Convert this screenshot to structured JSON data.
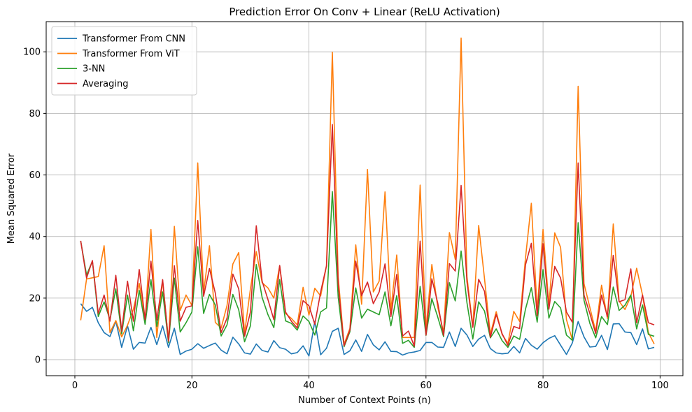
{
  "chart_data": {
    "type": "line",
    "title": "Prediction Error On Conv + Linear (ReLU Activation)",
    "xlabel": "Number of Context Points (n)",
    "ylabel": "Mean Squared Error",
    "xlim": [
      -4.9,
      103.9
    ],
    "ylim": [
      -5.2,
      109.8
    ],
    "xticks": [
      0,
      20,
      40,
      60,
      80,
      100
    ],
    "yticks": [
      0,
      20,
      40,
      60,
      80,
      100
    ],
    "grid": true,
    "legend_position": "top-left",
    "series": [
      {
        "name": "Transformer From CNN",
        "color": "#1f77b4",
        "x": [
          1,
          2,
          3,
          4,
          5,
          6,
          7,
          8,
          9,
          10,
          11,
          12,
          13,
          14,
          15,
          16,
          17,
          18,
          19,
          20,
          21,
          22,
          23,
          24,
          25,
          26,
          27,
          28,
          29,
          30,
          31,
          32,
          33,
          34,
          35,
          36,
          37,
          38,
          39,
          40,
          41,
          42,
          43,
          44,
          45,
          46,
          47,
          48,
          49,
          50,
          51,
          52,
          53,
          54,
          55,
          56,
          57,
          58,
          59,
          60,
          61,
          62,
          63,
          64,
          65,
          66,
          67,
          68,
          69,
          70,
          71,
          72,
          73,
          74,
          75,
          76,
          77,
          78,
          79,
          80,
          81,
          82,
          83,
          84,
          85,
          86,
          87,
          88,
          89,
          90,
          91,
          92,
          93,
          94,
          95,
          96,
          97,
          98,
          99
        ],
        "y": [
          18.2,
          15.7,
          17.0,
          12.0,
          8.8,
          7.5,
          12.5,
          4.0,
          11.0,
          3.4,
          5.6,
          5.4,
          10.5,
          4.9,
          11.0,
          4.0,
          10.2,
          1.7,
          2.8,
          3.4,
          5.2,
          3.7,
          4.6,
          5.4,
          3.1,
          1.9,
          7.3,
          5.1,
          2.2,
          1.8,
          5.1,
          3.0,
          2.5,
          6.2,
          3.9,
          3.4,
          1.9,
          2.3,
          4.5,
          1.2,
          12.5,
          1.6,
          3.7,
          9.2,
          10.2,
          1.7,
          2.9,
          6.4,
          2.7,
          8.2,
          4.8,
          3.2,
          5.8,
          2.7,
          2.6,
          1.5,
          2.2,
          2.5,
          3.0,
          5.6,
          5.6,
          4.1,
          4.0,
          9.0,
          4.3,
          10.2,
          8.0,
          4.3,
          6.7,
          7.9,
          3.6,
          2.2,
          1.9,
          2.1,
          4.3,
          2.2,
          6.9,
          4.7,
          3.4,
          5.5,
          6.9,
          7.8,
          4.7,
          1.7,
          5.4,
          12.4,
          7.4,
          4.1,
          4.3,
          7.9,
          3.3,
          11.6,
          11.7,
          9.0,
          8.8,
          4.9,
          10.0,
          3.5,
          4.0
        ]
      },
      {
        "name": "Transformer From ViT",
        "color": "#ff7f0e",
        "x": [
          1,
          2,
          3,
          4,
          5,
          6,
          7,
          8,
          9,
          10,
          11,
          12,
          13,
          14,
          15,
          16,
          17,
          18,
          19,
          20,
          21,
          22,
          23,
          24,
          25,
          26,
          27,
          28,
          29,
          30,
          31,
          32,
          33,
          34,
          35,
          36,
          37,
          38,
          39,
          40,
          41,
          42,
          43,
          44,
          45,
          46,
          47,
          48,
          49,
          50,
          51,
          52,
          53,
          54,
          55,
          56,
          57,
          58,
          59,
          60,
          61,
          62,
          63,
          64,
          65,
          66,
          67,
          68,
          69,
          70,
          71,
          72,
          73,
          74,
          75,
          76,
          77,
          78,
          79,
          80,
          81,
          82,
          83,
          84,
          85,
          86,
          87,
          88,
          89,
          90,
          91,
          92,
          93,
          94,
          95,
          96,
          97,
          98,
          99
        ],
        "y": [
          12.8,
          26.2,
          26.6,
          27.0,
          37.0,
          8.8,
          12.7,
          7.4,
          11.2,
          16.4,
          24.8,
          12.4,
          42.3,
          7.2,
          25.8,
          6.1,
          43.3,
          16.0,
          21.0,
          17.6,
          63.9,
          21.8,
          37.0,
          12.1,
          10.3,
          17.6,
          31.1,
          34.8,
          8.6,
          23.0,
          35.1,
          25.0,
          23.3,
          20.0,
          30.5,
          15.0,
          13.4,
          11.3,
          23.5,
          14.5,
          23.2,
          20.7,
          30.5,
          99.9,
          26.8,
          5.0,
          10.2,
          37.3,
          18.0,
          61.8,
          22.0,
          25.5,
          54.5,
          16.0,
          34.0,
          7.2,
          7.2,
          7.2,
          56.7,
          9.8,
          30.9,
          17.1,
          8.9,
          41.3,
          32.6,
          104.5,
          27.0,
          10.7,
          43.6,
          26.3,
          8.3,
          15.6,
          8.2,
          5.3,
          15.7,
          12.4,
          33.0,
          50.8,
          16.0,
          42.3,
          17.7,
          41.2,
          36.5,
          13.0,
          6.5,
          88.8,
          24.7,
          17.0,
          9.2,
          24.2,
          13.4,
          44.1,
          19.0,
          16.3,
          20.5,
          29.7,
          21.0,
          8.8,
          5.1
        ]
      },
      {
        "name": "3-NN",
        "color": "#2ca02c",
        "x": [
          1,
          2,
          3,
          4,
          5,
          6,
          7,
          8,
          9,
          10,
          11,
          12,
          13,
          14,
          15,
          16,
          17,
          18,
          19,
          20,
          21,
          22,
          23,
          24,
          25,
          26,
          27,
          28,
          29,
          30,
          31,
          32,
          33,
          34,
          35,
          36,
          37,
          38,
          39,
          40,
          41,
          42,
          43,
          44,
          45,
          46,
          47,
          48,
          49,
          50,
          51,
          52,
          53,
          54,
          55,
          56,
          57,
          58,
          59,
          60,
          61,
          62,
          63,
          64,
          65,
          66,
          67,
          68,
          69,
          70,
          71,
          72,
          73,
          74,
          75,
          76,
          77,
          78,
          79,
          80,
          81,
          82,
          83,
          84,
          85,
          86,
          87,
          88,
          89,
          90,
          91,
          92,
          93,
          94,
          95,
          96,
          97,
          98,
          99
        ],
        "y": [
          38.5,
          27.5,
          32.0,
          14.0,
          18.8,
          13.0,
          23.0,
          8.4,
          21.0,
          9.4,
          22.5,
          11.5,
          26.0,
          10.8,
          22.0,
          5.5,
          26.5,
          9.0,
          12.0,
          15.5,
          36.7,
          15.0,
          21.2,
          17.8,
          7.7,
          11.3,
          21.2,
          16.2,
          5.8,
          11.0,
          30.9,
          20.2,
          14.6,
          10.4,
          26.0,
          12.6,
          11.8,
          9.6,
          14.2,
          12.4,
          8.0,
          15.5,
          16.8,
          54.6,
          20.3,
          4.2,
          9.1,
          23.3,
          13.5,
          16.4,
          15.5,
          14.6,
          22.0,
          11.0,
          20.8,
          5.3,
          6.3,
          4.0,
          23.8,
          7.9,
          19.8,
          13.9,
          7.5,
          25.0,
          19.1,
          35.3,
          18.5,
          6.7,
          18.8,
          15.8,
          7.1,
          10.0,
          6.2,
          4.0,
          7.7,
          6.6,
          16.4,
          23.4,
          12.2,
          29.3,
          13.5,
          18.9,
          16.8,
          8.0,
          6.3,
          44.5,
          19.3,
          11.8,
          7.1,
          14.0,
          11.4,
          23.6,
          16.0,
          17.7,
          21.0,
          10.0,
          17.8,
          8.2,
          7.6
        ]
      },
      {
        "name": "Averaging",
        "color": "#d62728",
        "x": [
          1,
          2,
          3,
          4,
          5,
          6,
          7,
          8,
          9,
          10,
          11,
          12,
          13,
          14,
          15,
          16,
          17,
          18,
          19,
          20,
          21,
          22,
          23,
          24,
          25,
          26,
          27,
          28,
          29,
          30,
          31,
          32,
          33,
          34,
          35,
          36,
          37,
          38,
          39,
          40,
          41,
          42,
          43,
          44,
          45,
          46,
          47,
          48,
          49,
          50,
          51,
          52,
          53,
          54,
          55,
          56,
          57,
          58,
          59,
          60,
          61,
          62,
          63,
          64,
          65,
          66,
          67,
          68,
          69,
          70,
          71,
          72,
          73,
          74,
          75,
          76,
          77,
          78,
          79,
          80,
          81,
          82,
          83,
          84,
          85,
          86,
          87,
          88,
          89,
          90,
          91,
          92,
          93,
          94,
          95,
          96,
          97,
          98,
          99
        ],
        "y": [
          38.6,
          26.5,
          32.2,
          15.0,
          21.0,
          12.5,
          27.4,
          9.2,
          25.5,
          12.5,
          29.3,
          13.0,
          32.0,
          12.8,
          26.0,
          6.0,
          30.5,
          12.5,
          17.0,
          17.5,
          45.2,
          20.6,
          29.6,
          21.6,
          8.8,
          13.5,
          27.8,
          23.0,
          7.6,
          15.5,
          43.5,
          25.5,
          19.5,
          13.0,
          30.6,
          15.5,
          12.5,
          10.3,
          19.2,
          17.5,
          11.5,
          22.0,
          30.5,
          76.4,
          24.5,
          4.5,
          9.6,
          32.0,
          20.8,
          25.2,
          18.2,
          22.0,
          31.1,
          14.0,
          27.7,
          7.7,
          9.3,
          4.4,
          38.5,
          8.0,
          26.3,
          18.5,
          7.9,
          31.2,
          28.8,
          56.6,
          25.3,
          10.5,
          26.1,
          22.2,
          7.3,
          14.7,
          8.5,
          4.6,
          10.8,
          10.1,
          30.8,
          37.8,
          14.3,
          37.7,
          16.4,
          30.3,
          26.5,
          15.5,
          12.2,
          63.9,
          21.0,
          15.0,
          8.5,
          21.0,
          14.0,
          33.9,
          18.8,
          19.5,
          29.5,
          12.0,
          21.0,
          12.0,
          11.3
        ]
      }
    ]
  }
}
